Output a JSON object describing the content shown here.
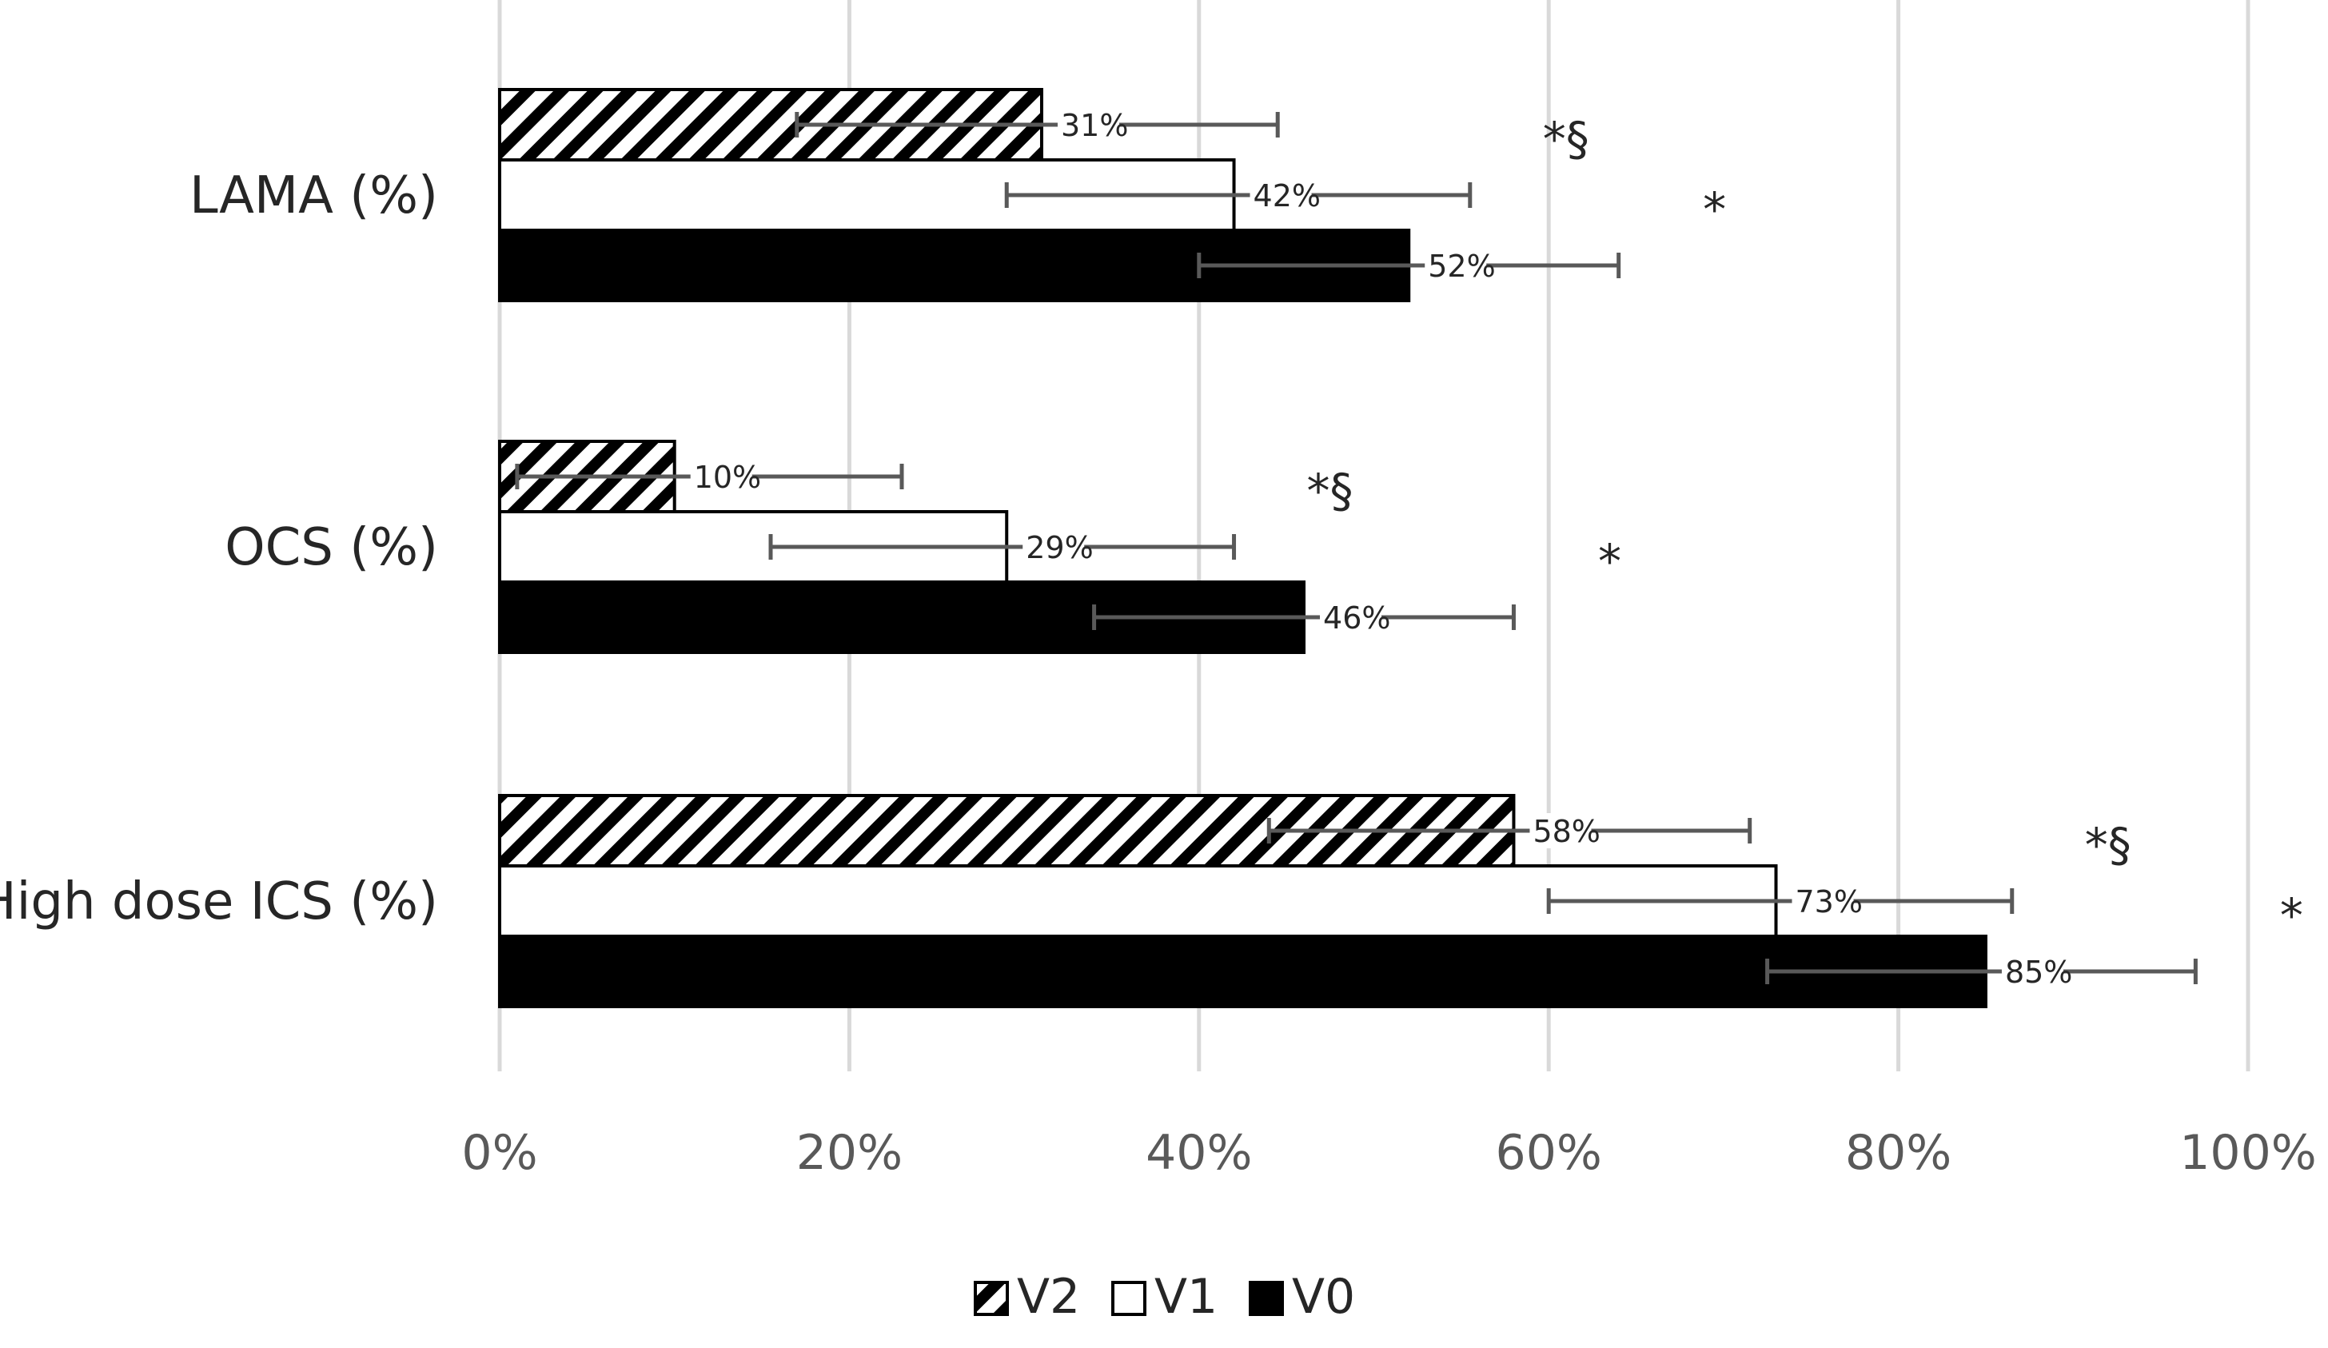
{
  "chart_data": {
    "type": "bar",
    "orientation": "horizontal",
    "categories": [
      "LAMA (%)",
      "OCS (%)",
      "High dose ICS (%)"
    ],
    "series": [
      {
        "name": "V2",
        "values": [
          31,
          10,
          58
        ],
        "labels": [
          "31%",
          "10%",
          "58%"
        ],
        "error_low": [
          17,
          1,
          44
        ],
        "error_high": [
          44.5,
          23,
          71.5
        ],
        "fill": "hatch"
      },
      {
        "name": "V1",
        "values": [
          42,
          29,
          73
        ],
        "labels": [
          "42%",
          "29%",
          "73%"
        ],
        "error_low": [
          29,
          15.5,
          60
        ],
        "error_high": [
          55.5,
          42,
          86.5
        ],
        "fill": "white"
      },
      {
        "name": "V0",
        "values": [
          52,
          46,
          85
        ],
        "labels": [
          "52%",
          "46%",
          "85%"
        ],
        "error_low": [
          40,
          34,
          72.5
        ],
        "error_high": [
          64,
          58,
          97
        ],
        "fill": "black"
      }
    ],
    "annotations": [
      {
        "category": 0,
        "series": 1,
        "text": "*§"
      },
      {
        "category": 0,
        "series": 2,
        "text": "*"
      },
      {
        "category": 1,
        "series": 1,
        "text": "*§"
      },
      {
        "category": 1,
        "series": 2,
        "text": "*"
      },
      {
        "category": 2,
        "series": 1,
        "text": "*§"
      },
      {
        "category": 2,
        "series": 2,
        "text": "*"
      }
    ],
    "xlim": [
      0,
      100
    ],
    "xticks": [
      0,
      20,
      40,
      60,
      80,
      100
    ],
    "xtick_labels": [
      "0%",
      "20%",
      "40%",
      "60%",
      "80%",
      "100%"
    ],
    "grid": true,
    "legend": "bottom",
    "title": "",
    "xlabel": "",
    "ylabel": ""
  },
  "colors": {
    "bar_edge": "#000000",
    "solid": "#000000",
    "gridline": "#d9d9d9",
    "error_bar": "#595959"
  }
}
